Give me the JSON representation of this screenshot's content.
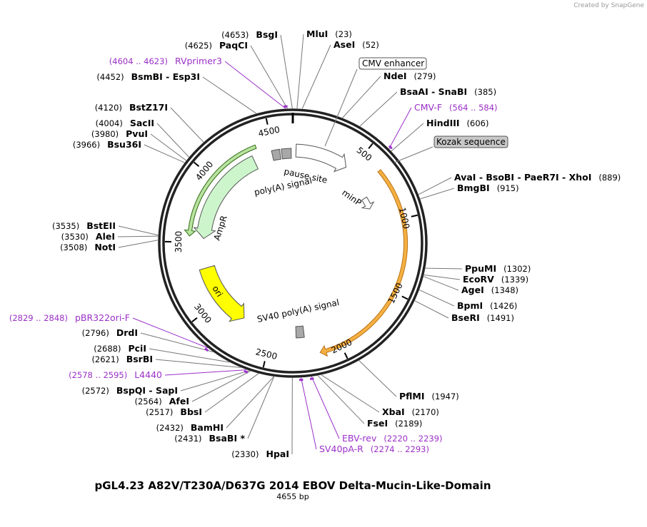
{
  "credit": "Created by SnapGene",
  "title": "pGL4.23 A82V/T230A/D637G 2014 EBOV Delta-Mucin-Like-Domain",
  "subtitle": "4655 bp",
  "ruler_ticks": [
    500,
    1000,
    1500,
    2000,
    2500,
    3000,
    3500,
    4000,
    4500
  ],
  "features": [
    {
      "label": "CMV enhancer"
    },
    {
      "label": "Kozak sequence"
    },
    {
      "label": "minP"
    },
    {
      "label": "pause site"
    },
    {
      "label": "poly(A) signal"
    },
    {
      "label": "AmpR"
    },
    {
      "label": "ori"
    },
    {
      "label": "SV40 poly(A) signal"
    }
  ],
  "sites": [
    {
      "name": "MluI",
      "position": "(23)"
    },
    {
      "name": "AseI",
      "position": "(52)"
    },
    {
      "name": "NdeI",
      "position": "(279)"
    },
    {
      "name": "BsaAI - SnaBI",
      "position": "(385)"
    },
    {
      "name": "HindIII",
      "position": "(606)"
    },
    {
      "name": "AvaI - BsoBI - PaeR7I - XhoI",
      "position": "(889)"
    },
    {
      "name": "BmgBI",
      "position": "(915)"
    },
    {
      "name": "PpuMI",
      "position": "(1302)"
    },
    {
      "name": "EcoRV",
      "position": "(1339)"
    },
    {
      "name": "AgeI",
      "position": "(1348)"
    },
    {
      "name": "BpmI",
      "position": "(1426)"
    },
    {
      "name": "BseRI",
      "position": "(1491)"
    },
    {
      "name": "PflMI",
      "position": "(1947)"
    },
    {
      "name": "FseI",
      "position": "(2189)"
    },
    {
      "name": "XbaI",
      "position": "(2170)"
    },
    {
      "name": "HpaI",
      "position": "(2330)"
    },
    {
      "name": "BsaBI *",
      "position": "(2431)"
    },
    {
      "name": "BamHI",
      "position": "(2432)"
    },
    {
      "name": "BbsI",
      "position": "(2517)"
    },
    {
      "name": "AfeI",
      "position": "(2564)"
    },
    {
      "name": "BspQI - SapI",
      "position": "(2572)"
    },
    {
      "name": "BsrBI",
      "position": "(2621)"
    },
    {
      "name": "PciI",
      "position": "(2688)"
    },
    {
      "name": "DrdI",
      "position": "(2796)"
    },
    {
      "name": "NotI",
      "position": "(3508)"
    },
    {
      "name": "AleI",
      "position": "(3530)"
    },
    {
      "name": "BstEII",
      "position": "(3535)"
    },
    {
      "name": "Bsu36I",
      "position": "(3966)"
    },
    {
      "name": "PvuI",
      "position": "(3980)"
    },
    {
      "name": "SacII",
      "position": "(4004)"
    },
    {
      "name": "BstZ17I",
      "position": "(4120)"
    },
    {
      "name": "BsmBI - Esp3I",
      "position": "(4452)"
    },
    {
      "name": "PaqCI",
      "position": "(4625)"
    },
    {
      "name": "BsgI",
      "position": "(4653)"
    }
  ],
  "primers": [
    {
      "name": "RVprimer3",
      "range": "(4604 .. 4623)"
    },
    {
      "name": "CMV-F",
      "range": "(564 .. 584)"
    },
    {
      "name": "EBV-rev",
      "range": "(2220 .. 2239)"
    },
    {
      "name": "SV40pA-R",
      "range": "(2274 .. 2293)"
    },
    {
      "name": "L4440",
      "range": "(2578 .. 2595)"
    },
    {
      "name": "pBR322ori-F",
      "range": "(2829 .. 2848)"
    }
  ]
}
